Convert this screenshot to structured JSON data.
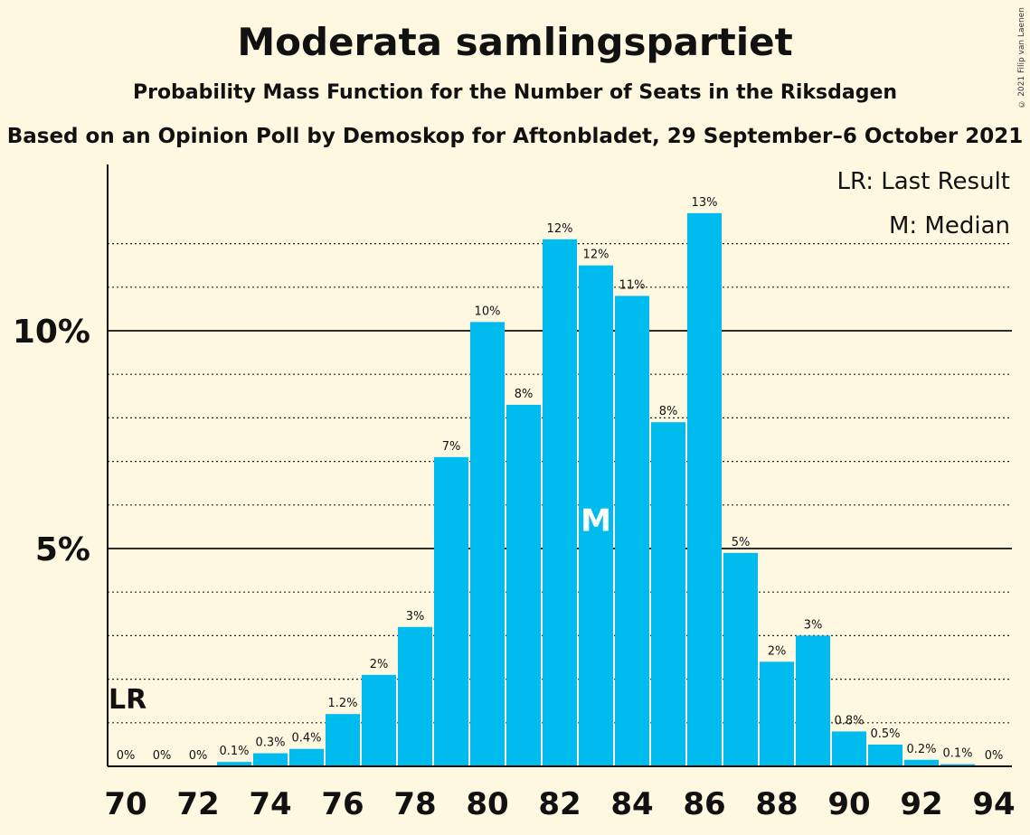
{
  "title": "Moderata samlingspartiet",
  "subtitle": "Probability Mass Function for the Number of Seats in the Riksdagen",
  "subtitle2": "Based on an Opinion Poll by Demoskop for Aftonbladet, 29 September–6 October 2021",
  "copyright": "© 2021 Filip van Laenen",
  "legend": {
    "lr": "LR: Last Result",
    "median": "M: Median"
  },
  "markers": {
    "lr_label": "LR",
    "median_label": "M"
  },
  "colors": {
    "bar": "#00bbee",
    "background": "#fff8e1",
    "text": "#111111"
  },
  "chart_data": {
    "type": "bar",
    "x": [
      70,
      71,
      72,
      73,
      74,
      75,
      76,
      77,
      78,
      79,
      80,
      81,
      82,
      83,
      84,
      85,
      86,
      87,
      88,
      89,
      90,
      91,
      92,
      93,
      94
    ],
    "values": [
      0,
      0,
      0,
      0.1,
      0.3,
      0.4,
      1.2,
      2.1,
      3.2,
      7.1,
      10.2,
      8.3,
      12.1,
      11.5,
      10.8,
      7.9,
      12.7,
      4.9,
      2.4,
      3.0,
      0.8,
      0.5,
      0.15,
      0.05,
      0
    ],
    "value_labels": [
      "0%",
      "0%",
      "0%",
      "0.1%",
      "0.3%",
      "0.4%",
      "1.2%",
      "2%",
      "3%",
      "7%",
      "10%",
      "8%",
      "12%",
      "12%",
      "11%",
      "8%",
      "13%",
      "5%",
      "2%",
      "3%",
      "0.8%",
      "0.5%",
      "0.2%",
      "0.1%",
      "0%"
    ],
    "x_tick_labels": [
      "70",
      "72",
      "74",
      "76",
      "78",
      "80",
      "82",
      "84",
      "86",
      "88",
      "90",
      "92",
      "94"
    ],
    "y_tick_labels": [
      "5%",
      "10%"
    ],
    "ylim": [
      0,
      13.8
    ],
    "last_result_seat": 70,
    "median_seat": 83,
    "grid": true,
    "legend_position": "top-right"
  }
}
